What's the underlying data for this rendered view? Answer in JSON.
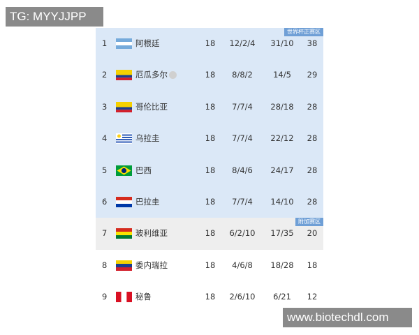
{
  "watermark_top": "TG: MYYJJPP",
  "watermark_bottom": "www.biotechdl.com",
  "zones": {
    "qualify": "世界杯正赛区",
    "playoff": "附加赛区"
  },
  "table": {
    "rows": [
      [
        "1",
        "阿根廷",
        "18",
        "12/2/4",
        "31/10",
        "38"
      ],
      [
        "2",
        "厄瓜多尔",
        "18",
        "8/8/2",
        "14/5",
        "29"
      ],
      [
        "3",
        "哥伦比亚",
        "18",
        "7/7/4",
        "28/18",
        "28"
      ],
      [
        "4",
        "乌拉圭",
        "18",
        "7/7/4",
        "22/12",
        "28"
      ],
      [
        "5",
        "巴西",
        "18",
        "8/4/6",
        "24/17",
        "28"
      ],
      [
        "6",
        "巴拉圭",
        "18",
        "7/7/4",
        "14/10",
        "28"
      ],
      [
        "7",
        "玻利维亚",
        "18",
        "6/2/10",
        "17/35",
        "20"
      ],
      [
        "8",
        "委内瑞拉",
        "18",
        "4/6/8",
        "18/28",
        "18"
      ],
      [
        "9",
        "秘鲁",
        "18",
        "2/6/10",
        "6/21",
        "12"
      ]
    ]
  }
}
